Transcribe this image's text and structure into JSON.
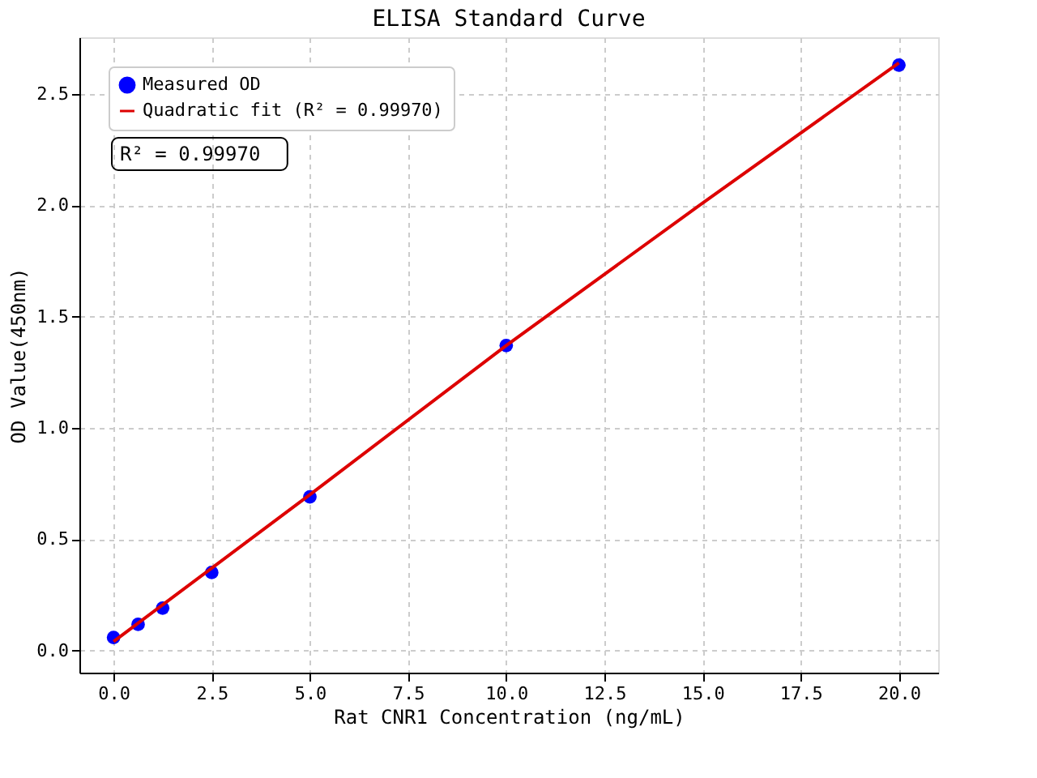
{
  "chart_data": {
    "type": "scatter",
    "title": "ELISA Standard Curve",
    "xlabel": "Rat CNR1 Concentration (ng/mL)",
    "ylabel": "OD Value(450nm)",
    "x": [
      0,
      0.625,
      1.25,
      2.5,
      5,
      10,
      20
    ],
    "series": [
      {
        "name": "Measured OD",
        "color": "#0000ff",
        "marker": "circle",
        "values": [
          0.058,
          0.117,
          0.19,
          0.35,
          0.69,
          1.37,
          2.63
        ]
      },
      {
        "name": "Quadratic fit (R² = 0.99970)",
        "type": "line",
        "color": "#dd0000",
        "line_style": "solid",
        "x": [
          0,
          5,
          10,
          15,
          20
        ],
        "values": [
          0.04,
          0.7,
          1.37,
          2.01,
          2.64
        ]
      }
    ],
    "xlim": [
      -0.87,
      21
    ],
    "ylim": [
      -0.1,
      2.755
    ],
    "xticks": [
      {
        "value": 0,
        "label": "0.0"
      },
      2.5,
      {
        "value": 5,
        "label": "5.0"
      },
      7.5,
      {
        "value": 10,
        "label": "10.0"
      },
      12.5,
      {
        "value": 15,
        "label": "15.0"
      },
      17.5,
      {
        "value": 20,
        "label": "20.0"
      }
    ],
    "yticks": [
      {
        "value": 0,
        "label": "0.0"
      },
      0.5,
      {
        "value": 1,
        "label": "1.0"
      },
      1.5,
      {
        "value": 2,
        "label": "2.0"
      },
      2.5
    ],
    "grid": true,
    "legend": "top left",
    "annotations": [
      "R² = 0.99970"
    ]
  }
}
